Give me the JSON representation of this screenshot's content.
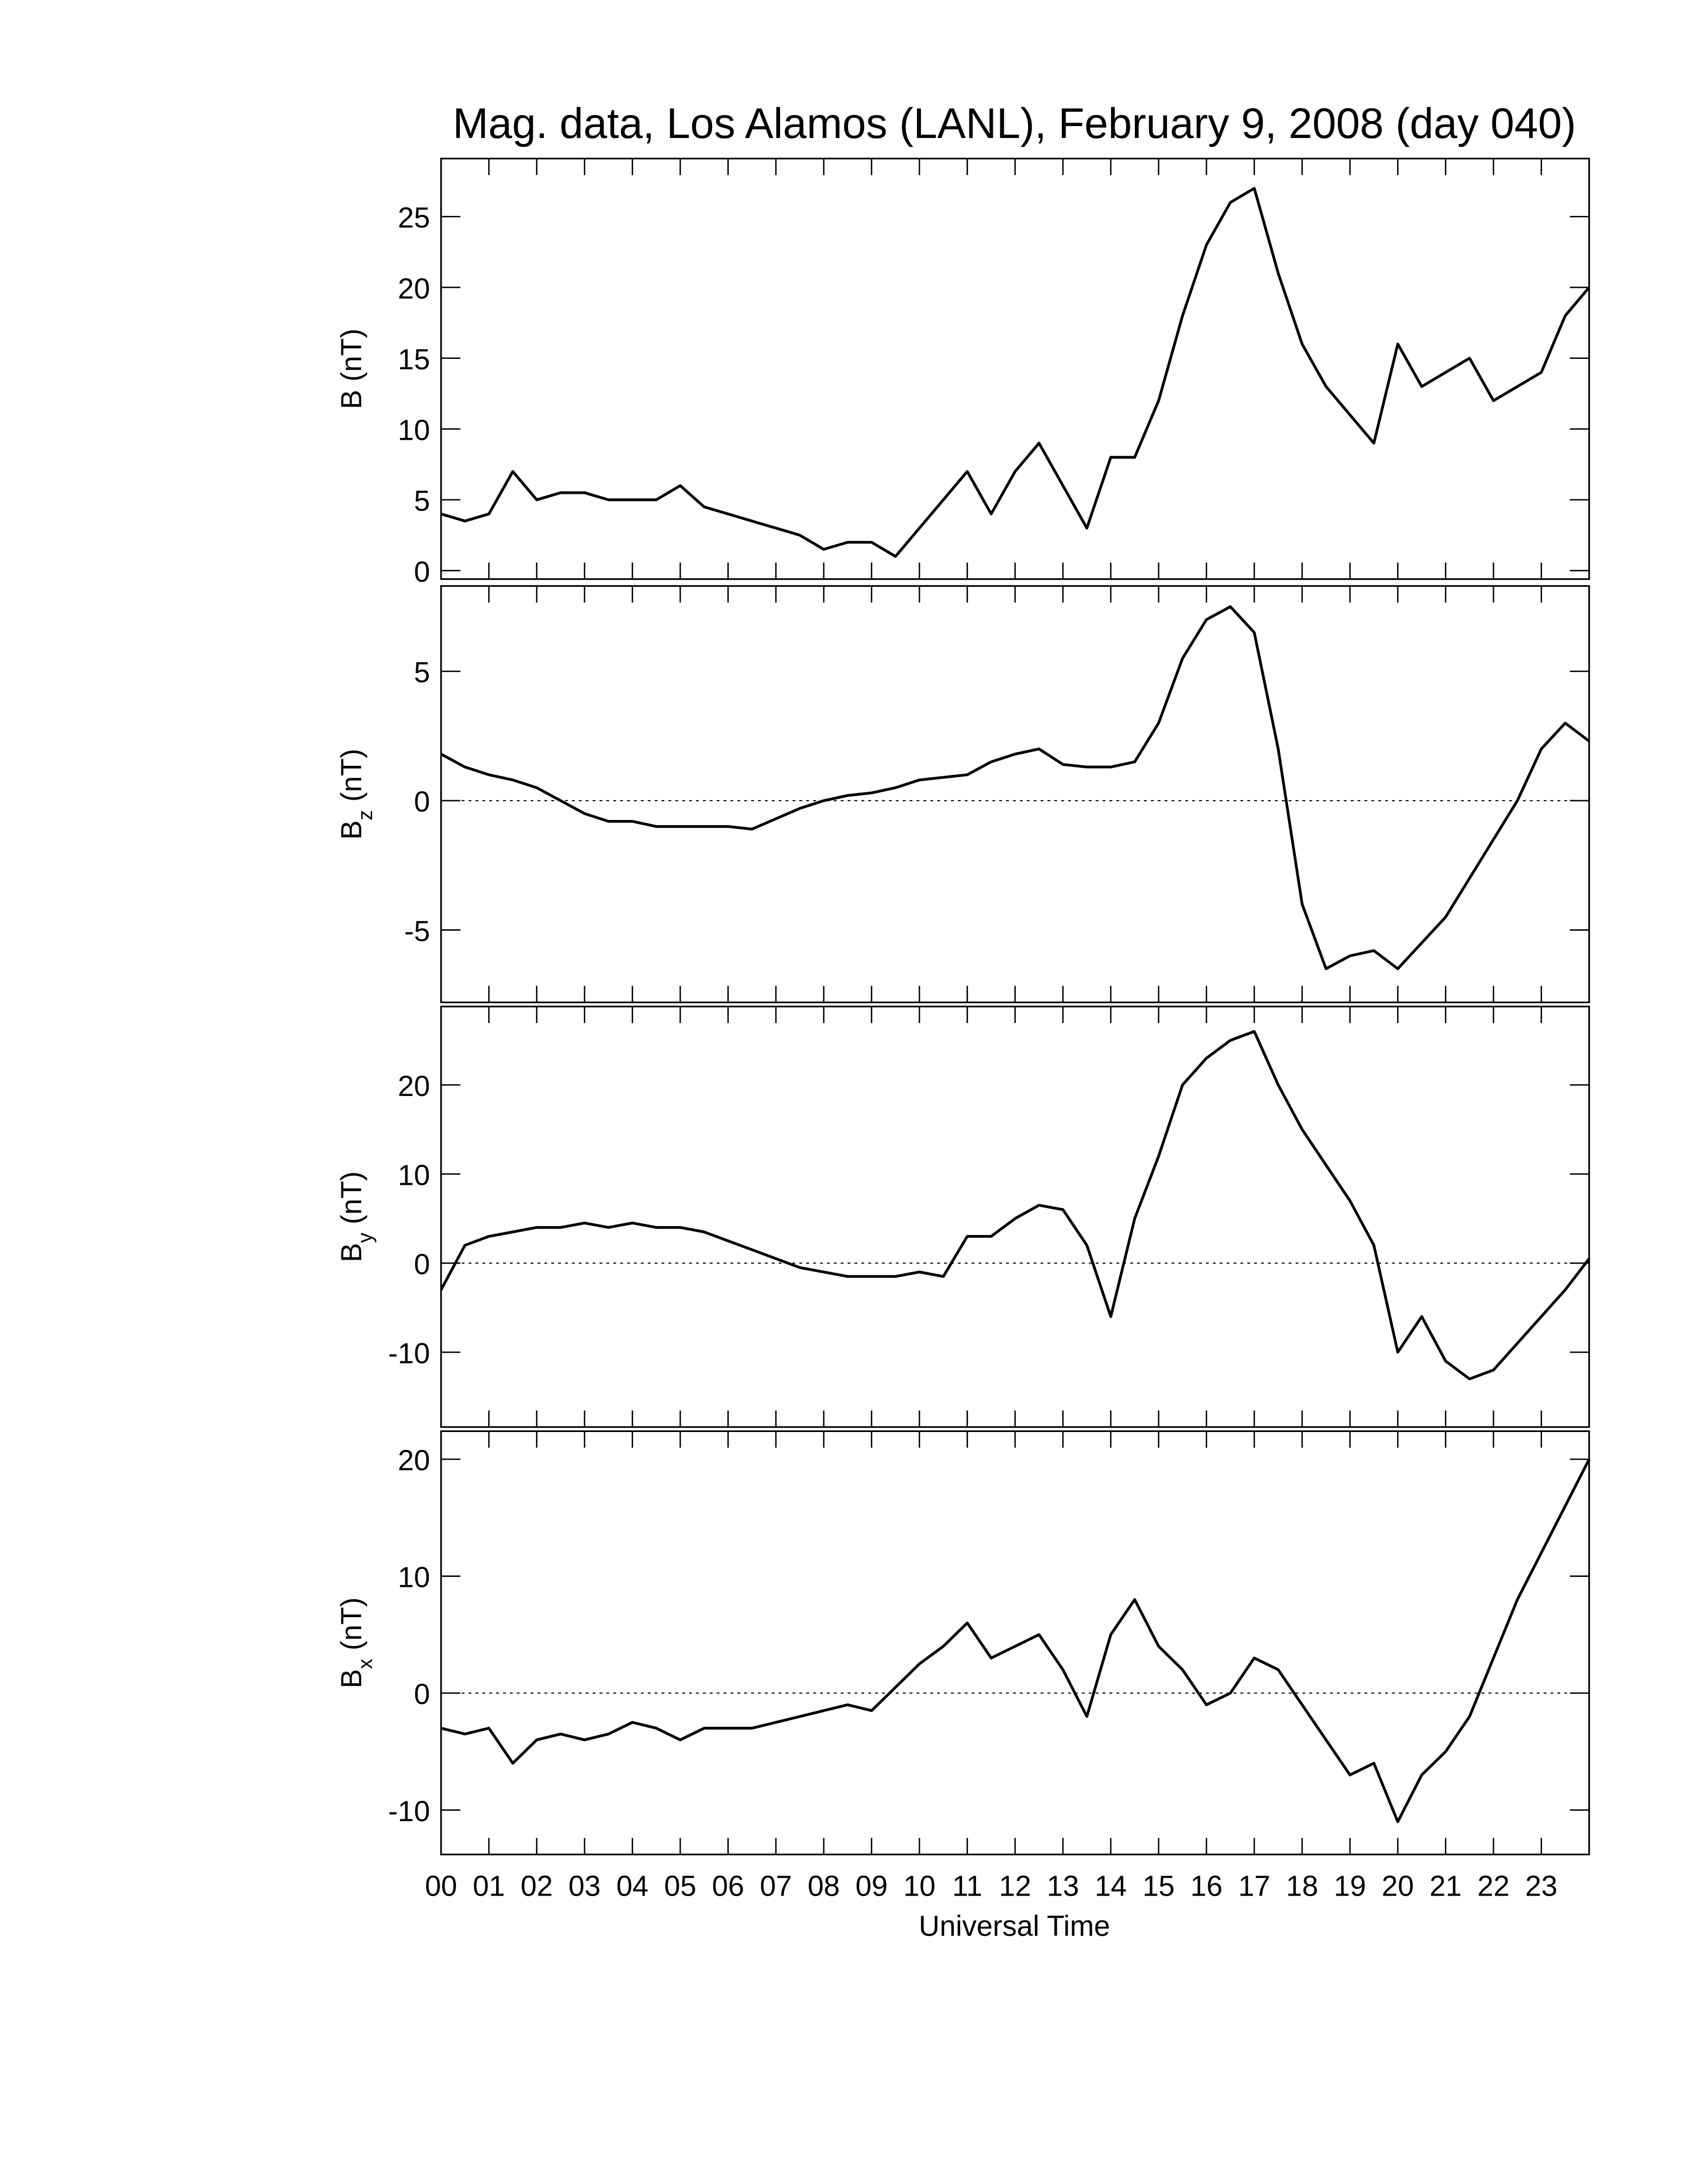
{
  "chart_data": [
    {
      "type": "line",
      "title": "Mag. data, Los Alamos (LANL), February 9, 2008 (day 040)",
      "y_label": {
        "symbol": "B",
        "unit": "(nT)"
      },
      "color": "#000000",
      "xlim": [
        0,
        24
      ],
      "ylim": [
        -0.6,
        29.1
      ],
      "yticks": [
        0,
        5,
        10,
        15,
        20,
        25
      ],
      "zero_line": false,
      "x": [
        0,
        0.5,
        1,
        1.5,
        2,
        2.5,
        3,
        3.5,
        4,
        4.5,
        5,
        5.5,
        6,
        6.5,
        7,
        7.5,
        8,
        8.5,
        9,
        9.5,
        10,
        10.5,
        11,
        11.5,
        12,
        12.5,
        13,
        13.5,
        14,
        14.5,
        15,
        15.5,
        16,
        16.5,
        17,
        17.5,
        18,
        18.5,
        19,
        19.5,
        20,
        20.5,
        21,
        21.5,
        22,
        22.5,
        23,
        23.5,
        24
      ],
      "values": [
        4,
        3.5,
        4,
        7,
        5,
        5.5,
        5.5,
        5,
        5,
        5,
        6,
        4.5,
        4,
        3.5,
        3,
        2.5,
        1.5,
        2,
        2,
        1,
        3,
        5,
        7,
        4,
        7,
        9,
        6,
        3,
        8,
        8,
        12,
        18,
        23,
        26,
        27,
        21,
        16,
        13,
        11,
        9,
        16,
        13,
        14,
        15,
        12,
        13,
        14,
        18,
        20
      ]
    },
    {
      "type": "line",
      "y_label": {
        "symbol": "B",
        "subscript": "z",
        "unit": "(nT)"
      },
      "color": "#000000",
      "xlim": [
        0,
        24
      ],
      "ylim": [
        -7.8,
        8.3
      ],
      "yticks": [
        -5,
        0,
        5
      ],
      "zero_line": true,
      "x": [
        0,
        0.5,
        1,
        1.5,
        2,
        2.5,
        3,
        3.5,
        4,
        4.5,
        5,
        5.5,
        6,
        6.5,
        7,
        7.5,
        8,
        8.5,
        9,
        9.5,
        10,
        10.5,
        11,
        11.5,
        12,
        12.5,
        13,
        13.5,
        14,
        14.5,
        15,
        15.5,
        16,
        16.5,
        17,
        17.5,
        18,
        18.5,
        19,
        19.5,
        20,
        20.5,
        21,
        21.5,
        22,
        22.5,
        23,
        23.5,
        24
      ],
      "values": [
        1.8,
        1.3,
        1,
        0.8,
        0.5,
        0,
        -0.5,
        -0.8,
        -0.8,
        -1,
        -1,
        -1,
        -1,
        -1.1,
        -0.7,
        -0.3,
        0,
        0.2,
        0.3,
        0.5,
        0.8,
        0.9,
        1,
        1.5,
        1.8,
        2,
        1.4,
        1.3,
        1.3,
        1.5,
        3,
        5.5,
        7,
        7.5,
        6.5,
        2,
        -4,
        -6.5,
        -6,
        -5.8,
        -6.5,
        -5.5,
        -4.5,
        -3,
        -1.5,
        0,
        2,
        3,
        2.3
      ]
    },
    {
      "type": "line",
      "y_label": {
        "symbol": "B",
        "subscript": "y",
        "unit": "(nT)"
      },
      "color": "#000000",
      "xlim": [
        0,
        24
      ],
      "ylim": [
        -18.4,
        28.8
      ],
      "yticks": [
        -10,
        0,
        10,
        20
      ],
      "zero_line": true,
      "x": [
        0,
        0.5,
        1,
        1.5,
        2,
        2.5,
        3,
        3.5,
        4,
        4.5,
        5,
        5.5,
        6,
        6.5,
        7,
        7.5,
        8,
        8.5,
        9,
        9.5,
        10,
        10.5,
        11,
        11.5,
        12,
        12.5,
        13,
        13.5,
        14,
        14.5,
        15,
        15.5,
        16,
        16.5,
        17,
        17.5,
        18,
        18.5,
        19,
        19.5,
        20,
        20.5,
        21,
        21.5,
        22,
        22.5,
        23,
        23.5,
        24
      ],
      "values": [
        -3,
        2,
        3,
        3.5,
        4,
        4,
        4.5,
        4,
        4.5,
        4,
        4,
        3.5,
        2.5,
        1.5,
        0.5,
        -0.5,
        -1,
        -1.5,
        -1.5,
        -1.5,
        -1,
        -1.5,
        3,
        3,
        5,
        6.5,
        6,
        2,
        -6,
        5,
        12,
        20,
        23,
        25,
        26,
        20,
        15,
        11,
        7,
        2,
        -10,
        -6,
        -11,
        -13,
        -12,
        -9,
        -6,
        -3,
        0.5
      ]
    },
    {
      "type": "line",
      "y_label": {
        "symbol": "B",
        "subscript": "x",
        "unit": "(nT)"
      },
      "x_label": "Universal Time",
      "color": "#000000",
      "xlim": [
        0,
        24
      ],
      "ylim": [
        -13.8,
        22.4
      ],
      "yticks": [
        -10,
        0,
        10,
        20
      ],
      "zero_line": true,
      "xticks": [
        {
          "value": 0,
          "label": "00"
        },
        {
          "value": 1,
          "label": "01"
        },
        {
          "value": 2,
          "label": "02"
        },
        {
          "value": 3,
          "label": "03"
        },
        {
          "value": 4,
          "label": "04"
        },
        {
          "value": 5,
          "label": "05"
        },
        {
          "value": 6,
          "label": "06"
        },
        {
          "value": 7,
          "label": "07"
        },
        {
          "value": 8,
          "label": "08"
        },
        {
          "value": 9,
          "label": "09"
        },
        10,
        11,
        12,
        13,
        14,
        15,
        16,
        17,
        18,
        19,
        20,
        21,
        22,
        23
      ],
      "x": [
        0,
        0.5,
        1,
        1.5,
        2,
        2.5,
        3,
        3.5,
        4,
        4.5,
        5,
        5.5,
        6,
        6.5,
        7,
        7.5,
        8,
        8.5,
        9,
        9.5,
        10,
        10.5,
        11,
        11.5,
        12,
        12.5,
        13,
        13.5,
        14,
        14.5,
        15,
        15.5,
        16,
        16.5,
        17,
        17.5,
        18,
        18.5,
        19,
        19.5,
        20,
        20.5,
        21,
        21.5,
        22,
        22.5,
        23,
        23.5,
        24
      ],
      "values": [
        -3,
        -3.5,
        -3,
        -6,
        -4,
        -3.5,
        -4,
        -3.5,
        -2.5,
        -3,
        -4,
        -3,
        -3,
        -3,
        -2.5,
        -2,
        -1.5,
        -1,
        -1.5,
        0.5,
        2.5,
        4,
        6,
        3,
        4,
        5,
        2,
        -2,
        5,
        8,
        4,
        2,
        -1,
        0,
        3,
        2,
        -1,
        -4,
        -7,
        -6,
        -11,
        -7,
        -5,
        -2,
        3,
        8,
        12,
        16,
        20
      ]
    }
  ]
}
